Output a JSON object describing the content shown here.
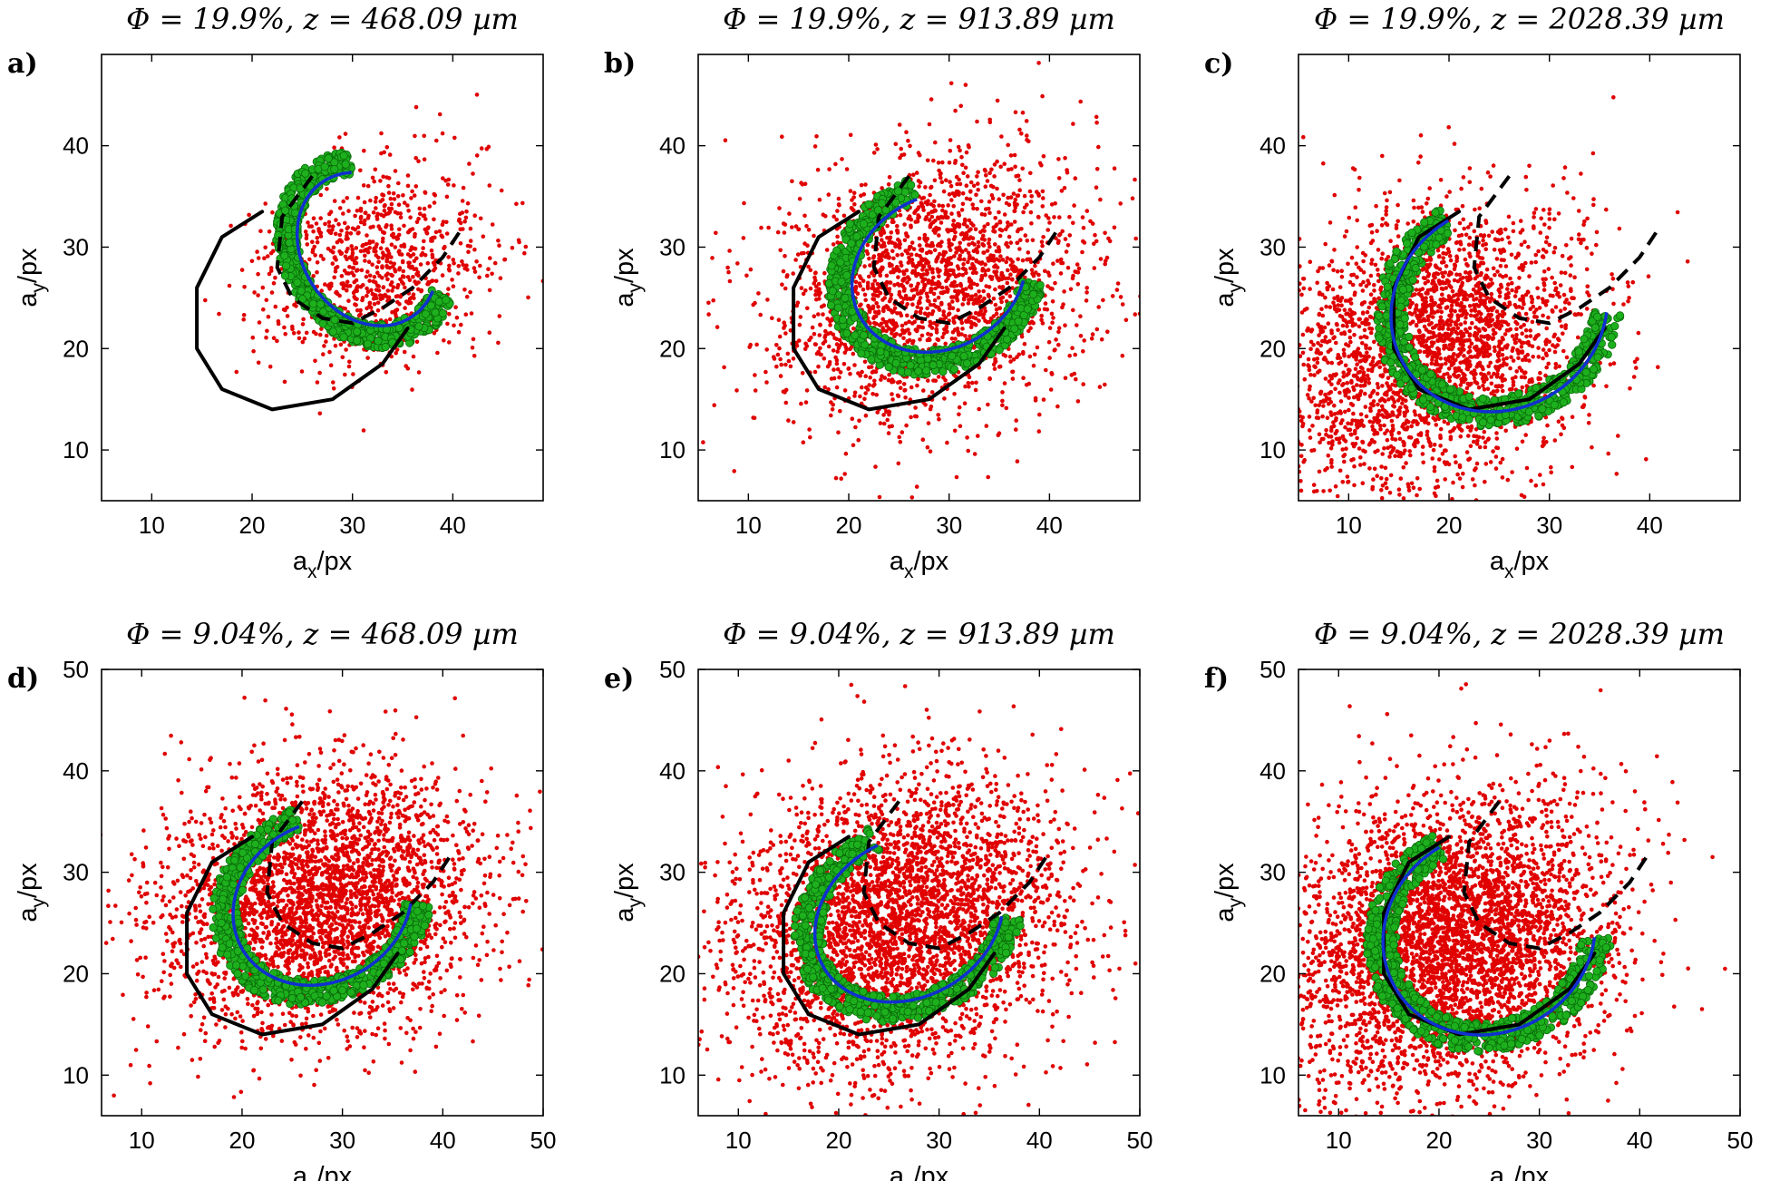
{
  "chart_data": [
    {
      "type": "scatter",
      "panel_label": "a)",
      "title": "Φ = 19.9%, z = 468.09 µm",
      "xlabel": "a_x/px",
      "ylabel": "a_y/px",
      "xlim": [
        5,
        49
      ],
      "ylim": [
        5,
        49
      ],
      "xticks": [
        10,
        20,
        30,
        40
      ],
      "yticks": [
        10,
        20,
        30,
        40
      ],
      "cloud": {
        "count": 900,
        "cx": 32,
        "cy": 28,
        "sx": 6,
        "sy": 6,
        "rot": 0.4
      },
      "green_arc": {
        "cx": 31.5,
        "cy": 29.8,
        "rx": 7.5,
        "ry": 9,
        "rot": 0.6,
        "t0": 1.1,
        "t1": 5.2
      },
      "blue_arc": {
        "cx": 31.5,
        "cy": 29.8,
        "rx": 6.5,
        "ry": 8,
        "rot": 0.6,
        "t0": 1.1,
        "t1": 5.2
      },
      "solid_curve": [
        [
          21,
          33.5
        ],
        [
          17,
          31
        ],
        [
          14.5,
          26
        ],
        [
          14.5,
          20
        ],
        [
          17,
          16
        ],
        [
          22,
          14
        ],
        [
          28,
          15
        ],
        [
          33,
          18.5
        ],
        [
          35.5,
          22
        ]
      ],
      "dashed_curve": [
        [
          26,
          37
        ],
        [
          23,
          33
        ],
        [
          22.5,
          28
        ],
        [
          24,
          25
        ],
        [
          27,
          23
        ],
        [
          30,
          22.5
        ],
        [
          33,
          24
        ],
        [
          36,
          26
        ],
        [
          39,
          29
        ],
        [
          41,
          32
        ]
      ],
      "series": [
        {
          "name": "",
          "color": "#e00000"
        },
        {
          "name": "",
          "color": "#1db01d"
        },
        {
          "name": "",
          "color": "#1030d0"
        }
      ]
    },
    {
      "type": "scatter",
      "panel_label": "b)",
      "title": "Φ = 19.9%, z = 913.89 µm",
      "xlabel": "a_x/px",
      "ylabel": "a_y/px",
      "xlim": [
        5,
        49
      ],
      "ylim": [
        5,
        49
      ],
      "xticks": [
        10,
        20,
        30,
        40
      ],
      "yticks": [
        10,
        20,
        30,
        40
      ],
      "cloud": {
        "count": 2200,
        "cx": 28,
        "cy": 26,
        "sx": 8,
        "sy": 8,
        "rot": 0.4
      },
      "green_arc": {
        "cx": 29,
        "cy": 27.5,
        "rx": 10,
        "ry": 8.5,
        "rot": 0.5,
        "t0": 1.4,
        "t1": 5.6
      },
      "blue_arc": {
        "cx": 29,
        "cy": 27.5,
        "rx": 9,
        "ry": 7.5,
        "rot": 0.5,
        "t0": 1.4,
        "t1": 5.6
      },
      "solid_curve": [
        [
          21,
          33.5
        ],
        [
          17,
          31
        ],
        [
          14.5,
          26
        ],
        [
          14.5,
          20
        ],
        [
          17,
          16
        ],
        [
          22,
          14
        ],
        [
          28,
          15
        ],
        [
          33,
          18.5
        ],
        [
          35.5,
          22
        ]
      ],
      "dashed_curve": [
        [
          26,
          37
        ],
        [
          23,
          33
        ],
        [
          22.5,
          28
        ],
        [
          24,
          25
        ],
        [
          27,
          23
        ],
        [
          30,
          22.5
        ],
        [
          33,
          24
        ],
        [
          36,
          26
        ],
        [
          39,
          29
        ],
        [
          41,
          32
        ]
      ],
      "series": [
        {
          "name": "",
          "color": "#e00000"
        },
        {
          "name": "",
          "color": "#1db01d"
        },
        {
          "name": "",
          "color": "#1030d0"
        }
      ]
    },
    {
      "type": "scatter",
      "panel_label": "c)",
      "title": "Φ = 19.9%, z = 2028.39 µm",
      "xlabel": "a_x/px",
      "ylabel": "a_y/px",
      "xlim": [
        5,
        49
      ],
      "ylim": [
        5,
        49
      ],
      "xticks": [
        10,
        20,
        30,
        40
      ],
      "yticks": [
        10,
        20,
        30,
        40
      ],
      "cloud": {
        "count": 2800,
        "cx": 18,
        "cy": 20,
        "sx": 8,
        "sy": 8,
        "rot": 0.5
      },
      "green_arc": {
        "cx": 25,
        "cy": 24,
        "rx": 11,
        "ry": 10,
        "rot": 0.5,
        "t0": 1.6,
        "t1": 5.7
      },
      "blue_arc": {
        "cx": 25,
        "cy": 24,
        "rx": 11,
        "ry": 10,
        "rot": 0.5,
        "t0": 1.6,
        "t1": 5.7
      },
      "solid_curve": [
        [
          21,
          33.5
        ],
        [
          17,
          31
        ],
        [
          14.5,
          26
        ],
        [
          14.5,
          20
        ],
        [
          17,
          16
        ],
        [
          22,
          14
        ],
        [
          28,
          15
        ],
        [
          33,
          18.5
        ],
        [
          35.5,
          22
        ]
      ],
      "dashed_curve": [
        [
          26,
          37
        ],
        [
          23,
          33
        ],
        [
          22.5,
          28
        ],
        [
          24,
          25
        ],
        [
          27,
          23
        ],
        [
          30,
          22.5
        ],
        [
          33,
          24
        ],
        [
          36,
          26
        ],
        [
          39,
          29
        ],
        [
          41,
          32
        ]
      ],
      "series": [
        {
          "name": "",
          "color": "#e00000"
        },
        {
          "name": "",
          "color": "#1db01d"
        },
        {
          "name": "",
          "color": "#1030d0"
        }
      ]
    },
    {
      "type": "scatter",
      "panel_label": "d)",
      "title": "Φ = 9.04%, z = 468.09 µm",
      "xlabel": "a_x/px",
      "ylabel": "a_y/px",
      "xlim": [
        6,
        50
      ],
      "ylim": [
        6,
        50
      ],
      "xticks": [
        10,
        20,
        30,
        40,
        50
      ],
      "yticks": [
        10,
        20,
        30,
        40,
        50
      ],
      "cloud": {
        "count": 3200,
        "cx": 28,
        "cy": 27,
        "sx": 8,
        "sy": 8,
        "rot": 0.3
      },
      "green_arc": {
        "cx": 28,
        "cy": 27,
        "rx": 10,
        "ry": 8.5,
        "rot": 0.5,
        "t0": 1.4,
        "t1": 5.7
      },
      "blue_arc": {
        "cx": 28,
        "cy": 27,
        "rx": 9.2,
        "ry": 7.8,
        "rot": 0.5,
        "t0": 1.4,
        "t1": 5.7
      },
      "solid_curve": [
        [
          21,
          33.5
        ],
        [
          17,
          31
        ],
        [
          14.5,
          26
        ],
        [
          14.5,
          20
        ],
        [
          17,
          16
        ],
        [
          22,
          14
        ],
        [
          28,
          15
        ],
        [
          33,
          18.5
        ],
        [
          35.5,
          22
        ]
      ],
      "dashed_curve": [
        [
          26,
          37
        ],
        [
          23,
          33
        ],
        [
          22.5,
          28
        ],
        [
          24,
          25
        ],
        [
          27,
          23
        ],
        [
          30,
          22.5
        ],
        [
          33,
          24
        ],
        [
          36,
          26
        ],
        [
          39,
          29
        ],
        [
          41,
          32
        ]
      ],
      "series": [
        {
          "name": "",
          "color": "#e00000"
        },
        {
          "name": "",
          "color": "#1db01d"
        },
        {
          "name": "",
          "color": "#1030d0"
        }
      ]
    },
    {
      "type": "scatter",
      "panel_label": "e)",
      "title": "Φ = 9.04%, z = 913.89 µm",
      "xlabel": "a_x/px",
      "ylabel": "a_y/px",
      "xlim": [
        6,
        50
      ],
      "ylim": [
        6,
        50
      ],
      "xticks": [
        10,
        20,
        30,
        40,
        50
      ],
      "yticks": [
        10,
        20,
        30,
        40,
        50
      ],
      "cloud": {
        "count": 3600,
        "cx": 26,
        "cy": 25,
        "sx": 8.5,
        "sy": 8.5,
        "rot": 0.4
      },
      "green_arc": {
        "cx": 27,
        "cy": 25.5,
        "rx": 10.5,
        "ry": 8.5,
        "rot": 0.5,
        "t0": 1.5,
        "t1": 5.7
      },
      "blue_arc": {
        "cx": 27,
        "cy": 25.5,
        "rx": 9.8,
        "ry": 7.8,
        "rot": 0.5,
        "t0": 1.5,
        "t1": 5.7
      },
      "solid_curve": [
        [
          21,
          33.5
        ],
        [
          17,
          31
        ],
        [
          14.5,
          26
        ],
        [
          14.5,
          20
        ],
        [
          17,
          16
        ],
        [
          22,
          14
        ],
        [
          28,
          15
        ],
        [
          33,
          18.5
        ],
        [
          35.5,
          22
        ]
      ],
      "dashed_curve": [
        [
          26,
          37
        ],
        [
          23,
          33
        ],
        [
          22.5,
          28
        ],
        [
          24,
          25
        ],
        [
          27,
          23
        ],
        [
          30,
          22.5
        ],
        [
          33,
          24
        ],
        [
          36,
          26
        ],
        [
          39,
          29
        ],
        [
          41,
          32
        ]
      ],
      "series": [
        {
          "name": "",
          "color": "#e00000"
        },
        {
          "name": "",
          "color": "#1db01d"
        },
        {
          "name": "",
          "color": "#1030d0"
        }
      ]
    },
    {
      "type": "scatter",
      "panel_label": "f)",
      "title": "Φ = 9.04%, z = 2028.39 µm",
      "xlabel": "a_x/px",
      "ylabel": "a_y/px",
      "xlim": [
        6,
        50
      ],
      "ylim": [
        6,
        50
      ],
      "xticks": [
        10,
        20,
        30,
        40,
        50
      ],
      "yticks": [
        10,
        20,
        30,
        40,
        50
      ],
      "cloud": {
        "count": 4200,
        "cx": 21,
        "cy": 23,
        "sx": 8.5,
        "sy": 8.5,
        "rot": 0.5
      },
      "green_arc": {
        "cx": 25,
        "cy": 24,
        "rx": 11,
        "ry": 10,
        "rot": 0.5,
        "t0": 1.6,
        "t1": 5.7
      },
      "blue_arc": {
        "cx": 25,
        "cy": 24,
        "rx": 10.8,
        "ry": 9.8,
        "rot": 0.5,
        "t0": 1.6,
        "t1": 5.7
      },
      "solid_curve": [
        [
          21,
          33.5
        ],
        [
          17,
          31
        ],
        [
          14.5,
          26
        ],
        [
          14.5,
          20
        ],
        [
          17,
          16
        ],
        [
          22,
          14
        ],
        [
          28,
          15
        ],
        [
          33,
          18.5
        ],
        [
          35.5,
          22
        ]
      ],
      "dashed_curve": [
        [
          26,
          37
        ],
        [
          23,
          33
        ],
        [
          22.5,
          28
        ],
        [
          24,
          25
        ],
        [
          27,
          23
        ],
        [
          30,
          22.5
        ],
        [
          33,
          24
        ],
        [
          36,
          26
        ],
        [
          39,
          29
        ],
        [
          41,
          32
        ]
      ],
      "series": [
        {
          "name": "",
          "color": "#e00000"
        },
        {
          "name": "",
          "color": "#1db01d"
        },
        {
          "name": "",
          "color": "#1030d0"
        }
      ]
    }
  ]
}
